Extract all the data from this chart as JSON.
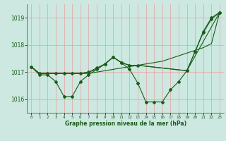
{
  "background_color": "#cce8e0",
  "grid_color": "#e8a0a0",
  "line_color": "#1a5c1a",
  "marker": "D",
  "marker_size": 2,
  "xlabel": "Graphe pression niveau de la mer (hPa)",
  "xlim": [
    -0.5,
    23.5
  ],
  "ylim": [
    1015.5,
    1019.5
  ],
  "yticks": [
    1016,
    1017,
    1018,
    1019
  ],
  "xticks": [
    0,
    1,
    2,
    3,
    4,
    5,
    6,
    7,
    8,
    9,
    10,
    11,
    12,
    13,
    14,
    15,
    16,
    17,
    18,
    19,
    20,
    21,
    22,
    23
  ],
  "series1_x": [
    0,
    1,
    2,
    3,
    4,
    5,
    6,
    7,
    8,
    9,
    10,
    11,
    12,
    13,
    14,
    15,
    16,
    17,
    18,
    19,
    20,
    21,
    22,
    23
  ],
  "series1_y": [
    1017.2,
    1016.9,
    1016.9,
    1016.65,
    1016.1,
    1016.1,
    1016.65,
    1016.9,
    1017.1,
    1017.3,
    1017.55,
    1017.35,
    1017.1,
    1016.6,
    1015.9,
    1015.9,
    1015.9,
    1016.35,
    1016.65,
    1017.05,
    1017.75,
    1018.5,
    1019.0,
    1019.2
  ],
  "series2_x": [
    0,
    1,
    2,
    3,
    4,
    5,
    6,
    7,
    8,
    9,
    10,
    11,
    12,
    13,
    14,
    15,
    16,
    17,
    18,
    19,
    20,
    21,
    22,
    23
  ],
  "series2_y": [
    1017.2,
    1016.95,
    1016.95,
    1016.95,
    1016.95,
    1016.95,
    1016.95,
    1016.95,
    1017.0,
    1017.05,
    1017.1,
    1017.15,
    1017.2,
    1017.25,
    1017.3,
    1017.35,
    1017.4,
    1017.5,
    1017.6,
    1017.7,
    1017.8,
    1017.9,
    1018.05,
    1019.2
  ],
  "series3_x": [
    0,
    1,
    2,
    3,
    4,
    5,
    6,
    7,
    8,
    9,
    10,
    11,
    12,
    13,
    19,
    20,
    21,
    22,
    23
  ],
  "series3_y": [
    1017.2,
    1016.95,
    1016.95,
    1016.95,
    1016.95,
    1016.95,
    1016.95,
    1017.0,
    1017.15,
    1017.3,
    1017.55,
    1017.35,
    1017.25,
    1017.25,
    1017.05,
    1017.75,
    1018.45,
    1018.95,
    1019.2
  ],
  "series4_x": [
    0,
    1,
    2,
    3,
    4,
    5,
    6,
    7,
    8,
    9,
    10,
    11,
    12,
    13,
    19,
    23
  ],
  "series4_y": [
    1017.2,
    1016.95,
    1016.95,
    1016.95,
    1016.95,
    1016.95,
    1016.95,
    1017.0,
    1017.1,
    1017.3,
    1017.55,
    1017.35,
    1017.25,
    1017.25,
    1017.05,
    1019.2
  ]
}
